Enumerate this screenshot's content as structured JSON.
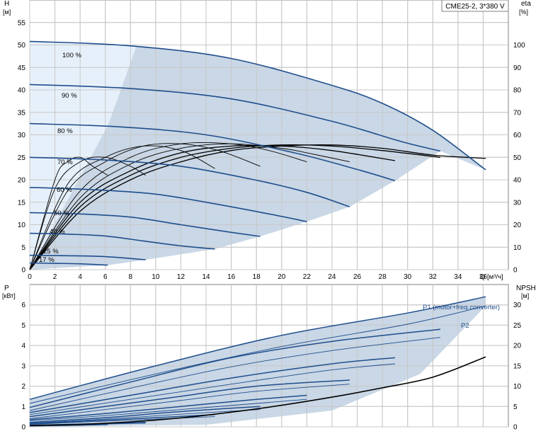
{
  "chart_data": [
    {
      "type": "line",
      "title": "CME25-2, 3*380 V",
      "xlabel": "Q [м³/ч]",
      "ylabel_left": "H [м]",
      "ylabel_right": "eta [%]",
      "xlim": [
        0,
        38
      ],
      "ylim_left": [
        0,
        60
      ],
      "ylim_right": [
        0,
        120
      ],
      "xticks": [
        0,
        2,
        4,
        6,
        8,
        10,
        12,
        14,
        16,
        18,
        20,
        22,
        24,
        26,
        28,
        30,
        32,
        34,
        36
      ],
      "yticks_left": [
        0,
        5,
        10,
        15,
        20,
        25,
        30,
        35,
        40,
        45,
        50,
        55
      ],
      "yticks_right": [
        0,
        10,
        20,
        30,
        40,
        50,
        60,
        70,
        80,
        90,
        100
      ],
      "grid": true,
      "colors": {
        "curve": "#1f4e8c",
        "band": "#c9d7e6",
        "band_light": "#e6f0fa",
        "eta": "#000000"
      },
      "head_curves": [
        {
          "label": "100 %",
          "x": [
            0,
            8,
            16,
            24,
            28,
            32,
            36.2
          ],
          "y": [
            50.8,
            49.8,
            47,
            41,
            37,
            31,
            22.2
          ]
        },
        {
          "label": "90 %",
          "x": [
            0,
            8,
            16,
            24,
            29.5,
            32.6
          ],
          "y": [
            41.2,
            40.3,
            38,
            33,
            28.5,
            26.4
          ]
        },
        {
          "label": "80 %",
          "x": [
            0,
            7,
            14,
            21,
            26,
            29
          ],
          "y": [
            32.5,
            31.8,
            30,
            26,
            22.3,
            19.8
          ]
        },
        {
          "label": "70 %",
          "x": [
            0,
            6,
            12,
            18,
            22,
            25.4
          ],
          "y": [
            25,
            24.4,
            23,
            19.9,
            17.2,
            14
          ]
        },
        {
          "label": "60 %",
          "x": [
            0,
            5,
            10,
            15,
            19,
            22
          ],
          "y": [
            18.3,
            17.8,
            16.8,
            14.5,
            12.4,
            10.7
          ]
        },
        {
          "label": "50 %",
          "x": [
            0,
            4,
            8,
            12,
            16,
            18.3
          ],
          "y": [
            12.7,
            12.4,
            11.7,
            10,
            8.3,
            7.4
          ]
        },
        {
          "label": "40 %",
          "x": [
            0,
            3,
            6,
            9,
            12,
            14.7
          ],
          "y": [
            8.1,
            7.9,
            7.5,
            6.4,
            5.3,
            4.6
          ]
        },
        {
          "label": "25 %",
          "x": [
            0,
            3,
            6,
            9.2
          ],
          "y": [
            3.2,
            3.1,
            2.9,
            2.2
          ]
        },
        {
          "label": "17 %",
          "x": [
            0,
            2,
            4,
            6.2
          ],
          "y": [
            1.5,
            1.4,
            1.3,
            1.0
          ]
        }
      ],
      "eta_curves": [
        {
          "name": "100 %",
          "x": [
            0,
            4,
            8,
            12,
            16,
            20,
            24,
            28,
            32,
            36.2
          ],
          "y": [
            0,
            26,
            40,
            48,
            53,
            55,
            55.5,
            54,
            51,
            49.5
          ]
        },
        {
          "name": "90 %",
          "x": [
            0,
            4,
            8,
            12,
            16,
            20,
            24,
            28,
            32.6
          ],
          "y": [
            0,
            28,
            42,
            50,
            54,
            55.5,
            55,
            53,
            50
          ]
        },
        {
          "name": "80 %",
          "x": [
            0,
            4,
            8,
            12,
            16,
            20,
            24,
            29
          ],
          "y": [
            0,
            30,
            44,
            52,
            55,
            55,
            53,
            48.5
          ]
        },
        {
          "name": "70 %",
          "x": [
            0,
            4,
            8,
            12,
            16,
            20,
            22,
            25.4
          ],
          "y": [
            0,
            32,
            47,
            54,
            56,
            54,
            52,
            48
          ]
        },
        {
          "name": "60 %",
          "x": [
            0,
            4,
            8,
            12,
            16,
            19,
            22
          ],
          "y": [
            0,
            35,
            50,
            56,
            56,
            53,
            48
          ]
        },
        {
          "name": "50 %",
          "x": [
            0,
            3,
            6,
            9,
            12,
            15,
            18.3
          ],
          "y": [
            0,
            35,
            48,
            55,
            56,
            53,
            46
          ]
        },
        {
          "name": "40 %",
          "x": [
            0,
            3,
            6,
            9,
            12,
            14.7
          ],
          "y": [
            0,
            38,
            50,
            55,
            53,
            45
          ]
        },
        {
          "name": "25 %",
          "x": [
            0,
            2,
            4,
            6,
            8,
            9.2
          ],
          "y": [
            0,
            36,
            48,
            50,
            46,
            42
          ]
        },
        {
          "name": "17 %",
          "x": [
            0,
            2,
            3,
            4,
            5,
            6.2
          ],
          "y": [
            0,
            40,
            48,
            50,
            46,
            42
          ]
        }
      ],
      "curve_labels": [
        "100 %",
        "90 %",
        "80 %",
        "70 %",
        "60 %",
        "50 %",
        "40 %",
        "25 %",
        "17 %"
      ]
    },
    {
      "type": "line",
      "title": "",
      "xlabel": "",
      "ylabel_left": "P [кВт]",
      "ylabel_right": "NPSH [м]",
      "xlim": [
        0,
        38
      ],
      "ylim_left": [
        0,
        7
      ],
      "ylim_right": [
        0,
        35
      ],
      "yticks_left": [
        0,
        1,
        2,
        3,
        4,
        5,
        6
      ],
      "yticks_right": [
        0,
        5,
        10,
        15,
        20,
        25,
        30
      ],
      "grid": true,
      "series_labels": [
        "P1 (motor+freq.converter)",
        "P2"
      ],
      "p1_curves": [
        {
          "x": [
            0,
            10,
            20,
            30,
            36.2
          ],
          "y": [
            1.35,
            3.0,
            4.5,
            5.6,
            6.4
          ]
        },
        {
          "x": [
            0,
            8,
            16,
            24,
            32.6
          ],
          "y": [
            0.95,
            2.2,
            3.4,
            4.2,
            4.8
          ]
        },
        {
          "x": [
            0,
            8,
            16,
            24,
            29
          ],
          "y": [
            0.7,
            1.55,
            2.4,
            3.1,
            3.4
          ]
        },
        {
          "x": [
            0,
            6,
            12,
            18,
            25.4
          ],
          "y": [
            0.5,
            1.0,
            1.5,
            2.0,
            2.3
          ]
        },
        {
          "x": [
            0,
            6,
            12,
            18,
            22
          ],
          "y": [
            0.35,
            0.65,
            1.0,
            1.35,
            1.55
          ]
        },
        {
          "x": [
            0,
            6,
            12,
            18.3
          ],
          "y": [
            0.22,
            0.45,
            0.75,
            1.0
          ]
        },
        {
          "x": [
            0,
            5,
            10,
            14.7
          ],
          "y": [
            0.15,
            0.3,
            0.45,
            0.6
          ]
        },
        {
          "x": [
            0,
            5,
            9.2
          ],
          "y": [
            0.08,
            0.15,
            0.22
          ]
        },
        {
          "x": [
            0,
            3,
            6.2
          ],
          "y": [
            0.05,
            0.08,
            0.12
          ]
        }
      ],
      "p2_curves": [
        {
          "x": [
            0,
            10,
            20,
            30,
            36.2
          ],
          "y": [
            1.15,
            2.6,
            3.95,
            5.05,
            5.95
          ]
        },
        {
          "x": [
            0,
            8,
            16,
            24,
            32.6
          ],
          "y": [
            0.8,
            1.9,
            2.95,
            3.75,
            4.4
          ]
        },
        {
          "x": [
            0,
            8,
            16,
            24,
            29
          ],
          "y": [
            0.6,
            1.35,
            2.1,
            2.8,
            3.1
          ]
        },
        {
          "x": [
            0,
            6,
            12,
            18,
            25.4
          ],
          "y": [
            0.4,
            0.85,
            1.3,
            1.75,
            2.1
          ]
        },
        {
          "x": [
            0,
            6,
            12,
            18,
            22
          ],
          "y": [
            0.3,
            0.55,
            0.85,
            1.15,
            1.35
          ]
        },
        {
          "x": [
            0,
            6,
            12,
            18.3
          ],
          "y": [
            0.18,
            0.38,
            0.62,
            0.85
          ]
        },
        {
          "x": [
            0,
            5,
            10,
            14.7
          ],
          "y": [
            0.12,
            0.25,
            0.38,
            0.5
          ]
        },
        {
          "x": [
            0,
            5,
            9.2
          ],
          "y": [
            0.06,
            0.12,
            0.18
          ]
        },
        {
          "x": [
            0,
            3,
            6.2
          ],
          "y": [
            0.04,
            0.06,
            0.1
          ]
        }
      ],
      "npsh_curve": {
        "x": [
          0,
          4,
          8,
          12,
          16,
          20,
          24,
          28,
          32,
          36.2
        ],
        "y": [
          0.3,
          0.6,
          1.2,
          2.2,
          3.6,
          5.3,
          7.3,
          9.6,
          12.2,
          17.2
        ]
      }
    }
  ]
}
